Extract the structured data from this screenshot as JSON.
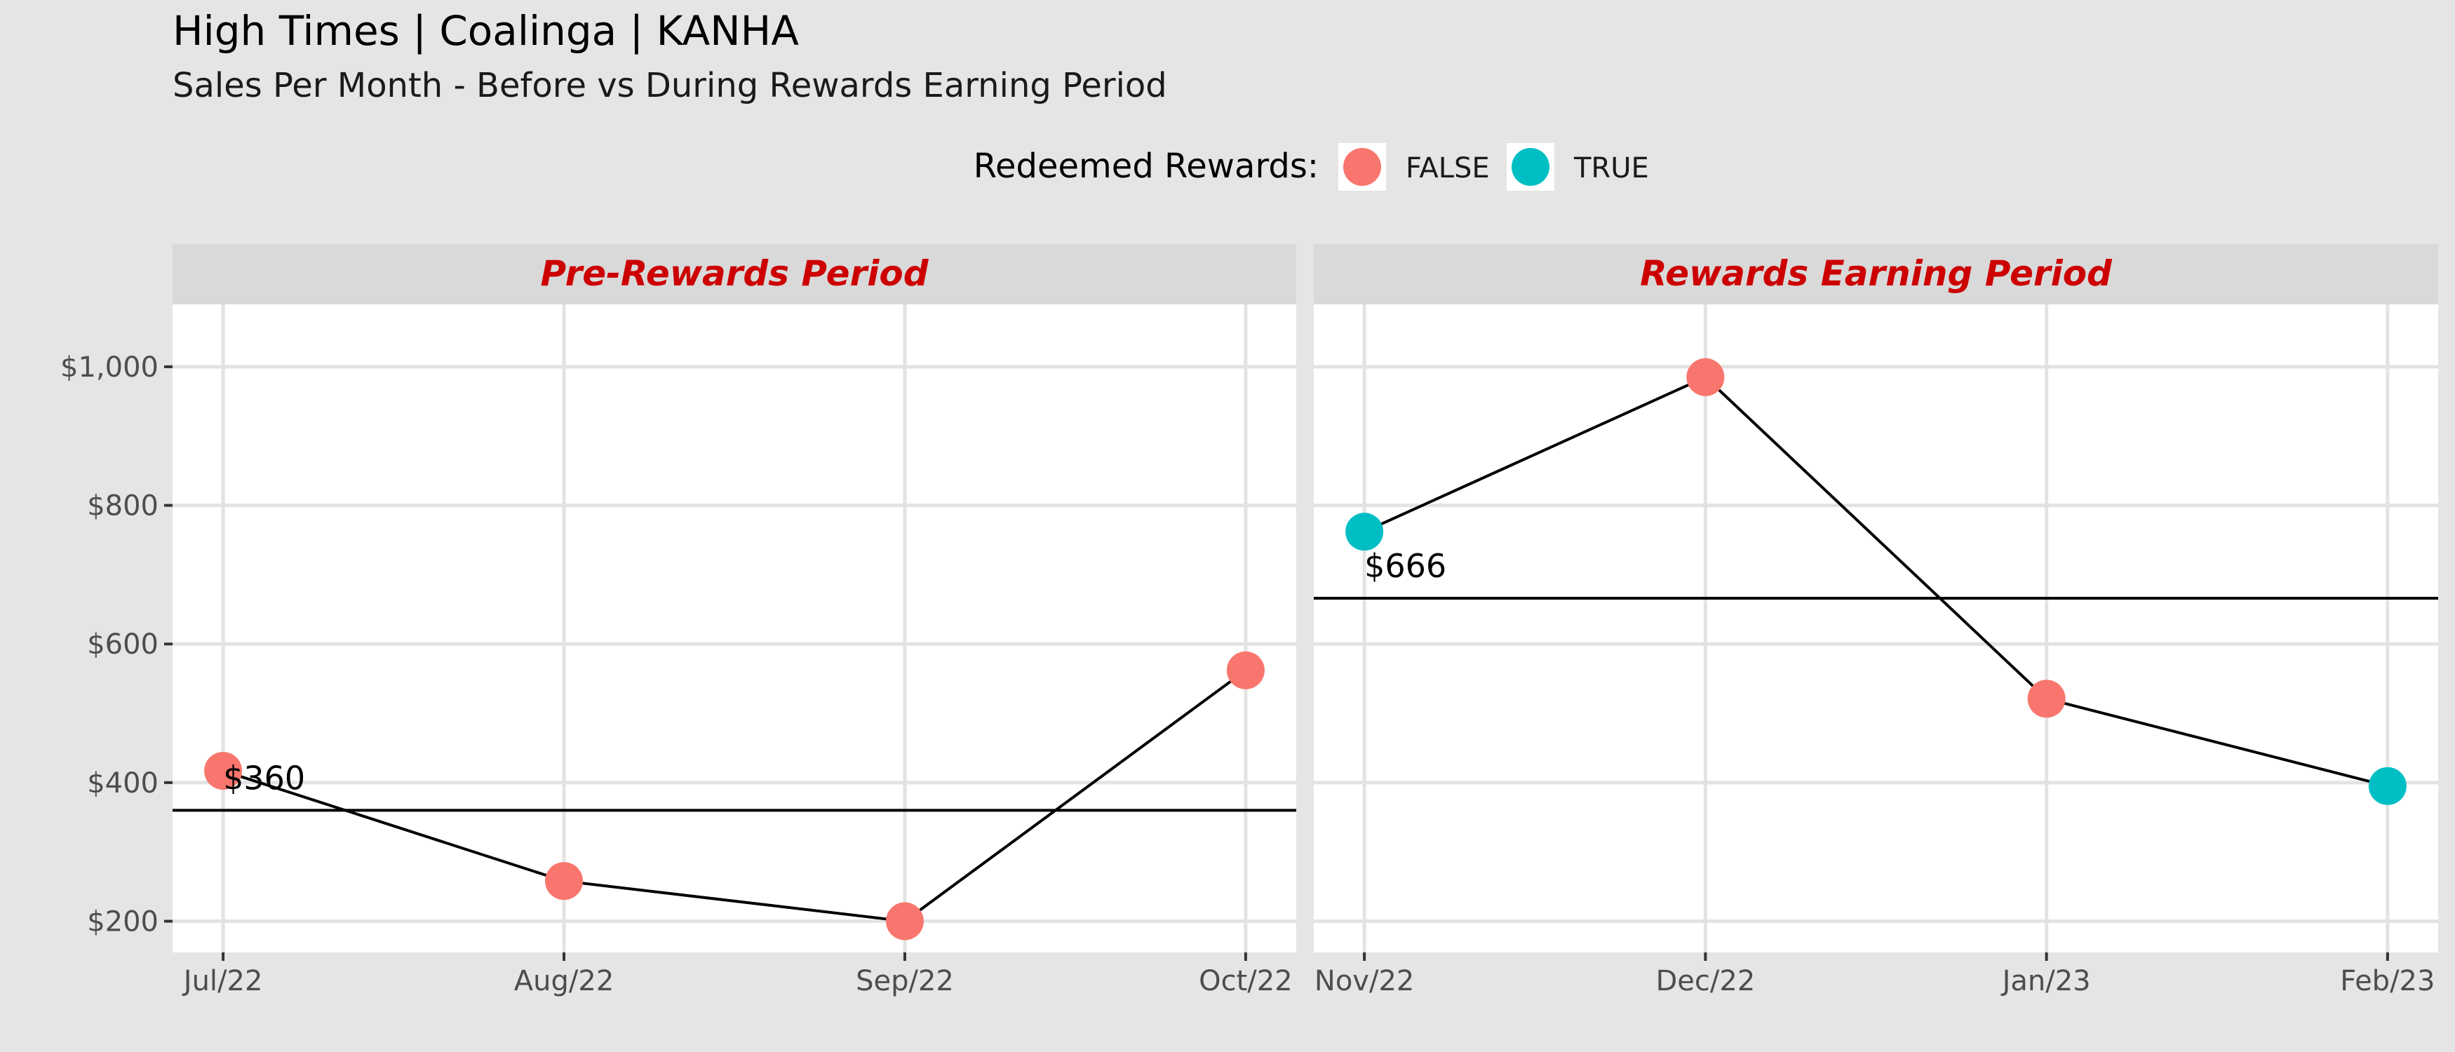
{
  "title": "High Times | Coalinga | KANHA",
  "subtitle": "Sales Per Month - Before vs During Rewards Earning Period",
  "legend": {
    "title": "Redeemed Rewards:",
    "position": "top-center",
    "items": [
      {
        "label": "FALSE",
        "color": "#F8766D"
      },
      {
        "label": "TRUE",
        "color": "#00BFC4"
      }
    ]
  },
  "colors": {
    "background": "#E5E5E5",
    "panel": "#FFFFFF",
    "grid": "#E3E3E3",
    "strip": "#D9D9D9",
    "strip_text": "#CC0000",
    "false": "#F8766D",
    "true": "#00BFC4",
    "line": "#000000",
    "axis_text": "#4D4D4D"
  },
  "chart_data": {
    "type": "line",
    "ylabel": "",
    "xlabel": "",
    "ylim": [
      155,
      1090
    ],
    "yticks": [
      200,
      400,
      600,
      800,
      1000
    ],
    "ytick_labels": [
      "$200",
      "$400",
      "$600",
      "$800",
      "$1,000"
    ],
    "grid": true,
    "panels": [
      {
        "title": "Pre-Rewards Period",
        "categories": [
          "Jul/22",
          "Aug/22",
          "Sep/22",
          "Oct/22"
        ],
        "values": [
          417,
          258,
          200,
          562
        ],
        "redeemed": [
          false,
          false,
          false,
          false
        ],
        "mean": 360,
        "mean_label": "$360"
      },
      {
        "title": "Rewards Earning Period",
        "categories": [
          "Nov/22",
          "Dec/22",
          "Jan/23",
          "Feb/23"
        ],
        "values": [
          762,
          985,
          521,
          395
        ],
        "redeemed": [
          true,
          false,
          false,
          true
        ],
        "mean": 666,
        "mean_label": "$666"
      }
    ]
  }
}
